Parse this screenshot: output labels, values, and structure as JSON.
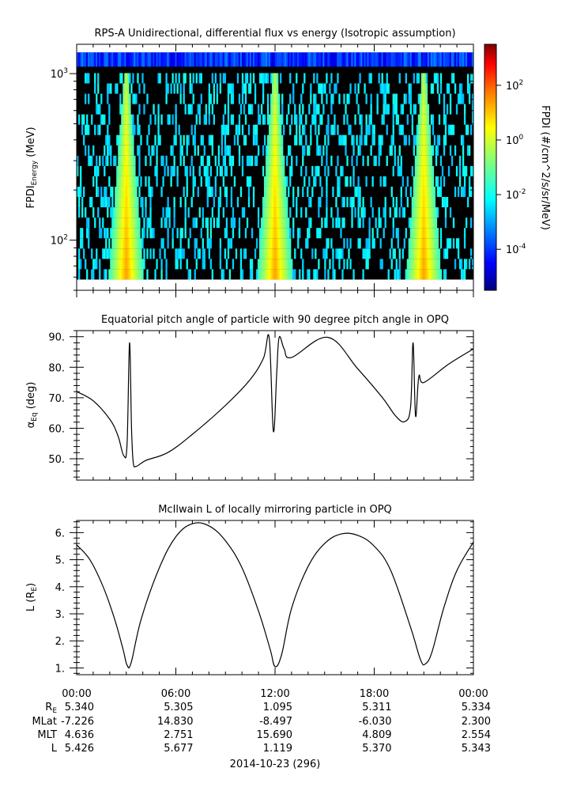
{
  "chart_data": [
    {
      "type": "heatmap",
      "title": "RPS-A Unidirectional, differential flux vs energy (Isotropic assumption)",
      "ylabel_main": "FPDI",
      "ylabel_sub": "Energy",
      "ylabel_unit": "(MeV)",
      "yscale": "log",
      "ylim": [
        50,
        1500
      ],
      "yticks": [
        {
          "value": 100,
          "base": "10",
          "exp": "2"
        },
        {
          "value": 1000,
          "base": "10",
          "exp": "3"
        }
      ],
      "energy_range": [
        58,
        1340
      ],
      "colorbar": {
        "label": "FPDI (#/cm^2/s/sr/MeV)",
        "scale": "log",
        "range_exp": [
          -5.5,
          3.5
        ],
        "ticks": [
          {
            "exp": -4,
            "label": "10",
            "sup": "-4"
          },
          {
            "exp": -2,
            "label": "10",
            "sup": "-2"
          },
          {
            "exp": 0,
            "label": "10",
            "sup": "0"
          },
          {
            "exp": 2,
            "label": "10",
            "sup": "2"
          }
        ],
        "colormap": [
          "#00007f",
          "#0000ff",
          "#007fff",
          "#00ffff",
          "#7fff7f",
          "#ffff00",
          "#ff7f00",
          "#ff0000",
          "#7f0000"
        ]
      },
      "belt_passes_hours": [
        3.0,
        12.0,
        21.0
      ]
    },
    {
      "type": "line",
      "title": "Equatorial pitch angle of particle with 90 degree pitch angle in OPQ",
      "ylabel_main": "α",
      "ylabel_sub": "Eq",
      "ylabel_unit": "(deg)",
      "ylim": [
        43,
        92
      ],
      "yticks": [
        "50.",
        "60.",
        "70.",
        "80.",
        "90."
      ],
      "ytick_values": [
        50,
        60,
        70,
        80,
        90
      ],
      "x_hours": [
        0,
        1,
        2,
        2.5,
        2.85,
        3.05,
        3.2,
        3.32,
        3.42,
        3.6,
        4.2,
        5.5,
        7,
        9,
        10.5,
        11.3,
        11.65,
        11.9,
        12.1,
        12.25,
        12.55,
        13.0,
        15.2,
        17.0,
        18.5,
        19.3,
        19.85,
        20.2,
        20.35,
        20.5,
        20.7,
        21.0,
        22.5,
        24
      ],
      "y_deg": [
        72,
        69,
        63,
        57.5,
        51,
        55,
        88,
        60,
        49,
        47.5,
        49.5,
        52,
        58,
        67.5,
        76,
        83,
        89.5,
        59,
        78,
        89.8,
        86,
        83.2,
        89.8,
        79.5,
        70,
        64,
        62.2,
        67,
        88,
        64,
        77,
        75,
        81,
        86
      ]
    },
    {
      "type": "line",
      "title": "McIlwain L of locally mirroring particle in OPQ",
      "ylabel_main": "L (R",
      "ylabel_sub": "E",
      "ylabel_unit": ")",
      "ylim": [
        0.75,
        6.45
      ],
      "yticks": [
        "1.",
        "2.",
        "3.",
        "4.",
        "5.",
        "6."
      ],
      "ytick_values": [
        1,
        2,
        3,
        4,
        5,
        6
      ],
      "x_hours": [
        0,
        0.8,
        1.6,
        2.3,
        2.8,
        3.05,
        3.3,
        3.9,
        5.0,
        6.0,
        7.0,
        8.0,
        9.0,
        10.0,
        11.0,
        11.7,
        12.0,
        12.4,
        13.0,
        14.0,
        15.0,
        16.0,
        17.0,
        18.0,
        19.0,
        20.2,
        20.8,
        21.1,
        21.5,
        22.2,
        23.0,
        24.0
      ],
      "y_re": [
        5.55,
        5.0,
        4.0,
        2.8,
        1.7,
        1.1,
        1.2,
        2.8,
        4.7,
        5.85,
        6.33,
        6.25,
        5.7,
        4.7,
        3.1,
        1.7,
        1.05,
        1.5,
        3.2,
        4.75,
        5.6,
        5.95,
        5.9,
        5.5,
        4.6,
        2.5,
        1.3,
        1.15,
        1.6,
        3.2,
        4.6,
        5.65
      ]
    }
  ],
  "x_axis": {
    "hours": [
      0,
      6,
      12,
      18,
      24
    ],
    "tick_labels": [
      "00:00",
      "06:00",
      "12:00",
      "18:00",
      "00:00"
    ],
    "date_label": "2014-10-23 (296)"
  },
  "ephemeris": {
    "rows": [
      {
        "label": "R",
        "sub": "E",
        "values": [
          "5.340",
          "5.305",
          "1.095",
          "5.311",
          "5.334"
        ]
      },
      {
        "label": "MLat",
        "sub": "",
        "values": [
          "-7.226",
          "14.830",
          "-8.497",
          "-6.030",
          "2.300"
        ]
      },
      {
        "label": "MLT",
        "sub": "",
        "values": [
          "4.636",
          "2.751",
          "15.690",
          "4.809",
          "2.554"
        ]
      },
      {
        "label": "L",
        "sub": "",
        "values": [
          "5.426",
          "5.677",
          "1.119",
          "5.370",
          "5.343"
        ]
      }
    ]
  }
}
